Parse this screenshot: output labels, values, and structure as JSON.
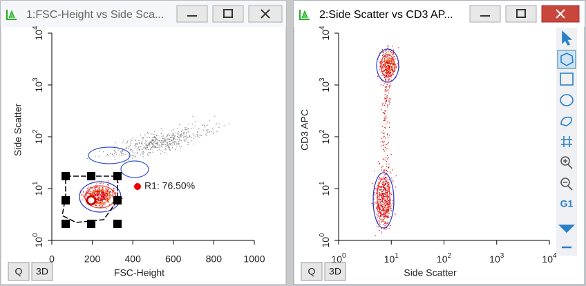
{
  "windows": [
    {
      "title": "1:FSC-Height vs Side Sca...",
      "x_axis": {
        "label": "FSC-Height",
        "ticks": [
          {
            "text": "0"
          },
          {
            "text": "200"
          },
          {
            "text": "400"
          },
          {
            "text": "600"
          },
          {
            "text": "800"
          },
          {
            "text": "1000"
          }
        ]
      },
      "y_axis": {
        "label": "Side Scatter",
        "ticks": [
          {
            "base": "10",
            "exp": "0"
          },
          {
            "base": "10",
            "exp": "1"
          },
          {
            "base": "10",
            "exp": "2"
          },
          {
            "base": "10",
            "exp": "3"
          },
          {
            "base": "10",
            "exp": "4"
          }
        ]
      },
      "annotation": "R1: 76.50%",
      "buttons": [
        "Q",
        "3D"
      ]
    },
    {
      "title": "2:Side Scatter vs CD3 AP...",
      "x_axis": {
        "label": "Side Scatter",
        "ticks": [
          {
            "base": "10",
            "exp": "0"
          },
          {
            "base": "10",
            "exp": "1"
          },
          {
            "base": "10",
            "exp": "2"
          },
          {
            "base": "10",
            "exp": "3"
          },
          {
            "base": "10",
            "exp": "4"
          }
        ]
      },
      "y_axis": {
        "label": "CD3 APC",
        "ticks": [
          {
            "base": "10",
            "exp": "0"
          },
          {
            "base": "10",
            "exp": "1"
          },
          {
            "base": "10",
            "exp": "2"
          },
          {
            "base": "10",
            "exp": "3"
          },
          {
            "base": "10",
            "exp": "4"
          }
        ]
      },
      "buttons": [
        "Q",
        "3D"
      ]
    }
  ],
  "toolbar": {
    "gate_label": "G1"
  }
}
